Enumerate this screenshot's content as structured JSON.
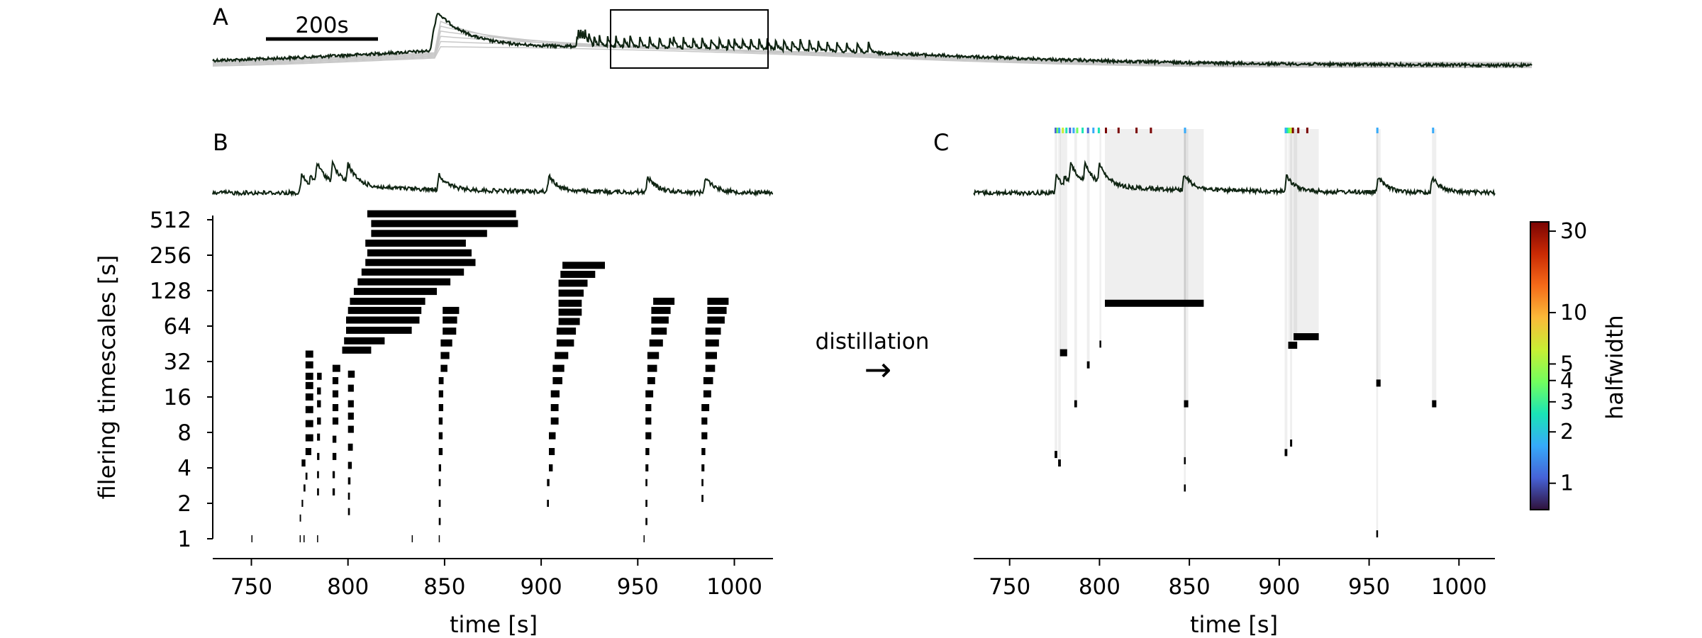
{
  "panel_a": {
    "letter": "A",
    "scalebar_label": "200s",
    "peak_times": [
      776,
      778,
      781,
      784,
      787,
      792,
      799,
      806,
      817,
      828,
      839,
      847,
      860,
      873,
      886,
      900,
      905,
      918,
      931,
      943,
      955,
      966,
      978,
      986,
      997,
      1008,
      1019,
      1030,
      1041,
      1052,
      1063,
      1074,
      1086,
      1098,
      1110,
      1123,
      1136,
      1150,
      1165
    ]
  },
  "panel_b": {
    "letter": "B"
  },
  "panel_c": {
    "letter": "C"
  },
  "arrow": {
    "label": "distillation",
    "glyph": "→"
  },
  "colorbar": {
    "label": "halfwidth",
    "tick_labels": [
      "1",
      "2",
      "3",
      "4",
      "5",
      "10",
      "30"
    ],
    "tick_values": [
      1,
      2,
      3,
      4,
      5,
      10,
      30
    ],
    "colors": [
      "#30123b",
      "#4662d7",
      "#36aaf9",
      "#1ae4b6",
      "#72fe5e",
      "#c8ef34",
      "#faba39",
      "#f66b19",
      "#ca2a04",
      "#7a0403"
    ]
  },
  "chart_data": [
    {
      "panel": "B",
      "type": "bar",
      "orientation": "horizontal-segments",
      "xlabel": "time [s]",
      "ylabel": "filering timescales [s]",
      "xlim": [
        730,
        1020
      ],
      "x_ticks": [
        750,
        800,
        850,
        900,
        950,
        1000
      ],
      "y_scale": "log2",
      "y_ticks": [
        1,
        2,
        4,
        8,
        16,
        32,
        64,
        128,
        256,
        512
      ],
      "peak_times": [
        776,
        784,
        792,
        800,
        847,
        904,
        955,
        985
      ],
      "segments": [
        [
          750,
          1,
          0.5
        ],
        [
          775,
          1,
          0.5
        ],
        [
          777,
          1,
          0.5
        ],
        [
          784,
          1,
          0.5
        ],
        [
          833,
          1,
          0.5
        ],
        [
          847,
          1,
          0.5
        ],
        [
          953,
          1,
          0.5
        ],
        [
          775,
          1.5,
          0.7
        ],
        [
          776,
          2,
          0.8
        ],
        [
          777,
          2.7,
          1
        ],
        [
          778,
          3.4,
          1
        ],
        [
          776,
          4.4,
          2
        ],
        [
          778,
          5.5,
          3
        ],
        [
          778,
          7.2,
          4
        ],
        [
          778,
          9.5,
          4
        ],
        [
          778,
          12.5,
          4
        ],
        [
          778,
          16,
          4
        ],
        [
          778,
          20,
          4
        ],
        [
          778,
          24,
          4
        ],
        [
          778,
          30,
          4
        ],
        [
          778,
          37,
          4
        ],
        [
          784,
          2.5,
          1
        ],
        [
          784,
          3.5,
          1
        ],
        [
          784,
          5,
          1.2
        ],
        [
          784,
          7.3,
          1.5
        ],
        [
          784,
          10,
          2
        ],
        [
          784,
          14,
          2
        ],
        [
          784,
          18,
          2
        ],
        [
          784,
          24,
          2.4
        ],
        [
          792,
          2.5,
          1.2
        ],
        [
          792,
          3.5,
          1.2
        ],
        [
          792,
          5,
          2
        ],
        [
          792,
          7,
          2
        ],
        [
          792,
          10,
          3
        ],
        [
          792,
          13,
          3
        ],
        [
          792,
          17,
          3
        ],
        [
          792,
          22,
          3
        ],
        [
          792,
          28,
          4
        ],
        [
          800,
          1.7,
          1
        ],
        [
          800,
          2.3,
          1
        ],
        [
          800,
          3.1,
          1.3
        ],
        [
          800,
          4.2,
          2
        ],
        [
          800,
          6,
          2.5
        ],
        [
          800,
          8.5,
          3
        ],
        [
          800,
          11,
          3
        ],
        [
          800,
          14,
          3
        ],
        [
          800,
          19,
          3
        ],
        [
          800,
          25,
          3.5
        ],
        [
          847,
          1.4,
          1
        ],
        [
          847,
          2,
          1
        ],
        [
          847,
          3,
          1
        ],
        [
          847,
          4,
          1.2
        ],
        [
          847,
          5.5,
          2
        ],
        [
          847,
          7.5,
          2
        ],
        [
          847,
          10,
          2
        ],
        [
          847,
          13,
          2.3
        ],
        [
          847,
          17,
          2.3
        ],
        [
          847,
          22,
          2.5
        ],
        [
          848,
          28,
          3.5
        ],
        [
          848,
          36,
          4.5
        ],
        [
          848,
          46,
          6
        ],
        [
          849,
          58,
          7
        ],
        [
          849,
          72,
          7.5
        ],
        [
          849,
          87,
          8.5
        ],
        [
          903,
          2,
          1
        ],
        [
          903,
          3,
          1.3
        ],
        [
          904,
          4,
          2
        ],
        [
          904,
          5.5,
          3
        ],
        [
          904,
          7.5,
          3.5
        ],
        [
          905,
          10,
          4
        ],
        [
          905,
          13,
          4
        ],
        [
          905,
          17,
          4.5
        ],
        [
          906,
          22,
          5
        ],
        [
          906,
          28,
          6
        ],
        [
          907,
          36,
          7
        ],
        [
          908,
          46,
          9
        ],
        [
          908,
          58,
          10
        ],
        [
          909,
          70,
          11
        ],
        [
          909,
          84,
          12
        ],
        [
          909,
          100,
          12
        ],
        [
          909,
          122,
          13
        ],
        [
          909,
          148,
          15
        ],
        [
          910,
          176,
          18
        ],
        [
          911,
          210,
          22
        ],
        [
          954,
          1.4,
          1
        ],
        [
          954,
          2,
          1
        ],
        [
          954,
          3,
          1
        ],
        [
          954,
          4,
          1.5
        ],
        [
          954,
          5.5,
          2
        ],
        [
          954,
          7.5,
          3
        ],
        [
          954,
          10,
          3
        ],
        [
          954,
          13,
          3
        ],
        [
          954,
          17,
          4
        ],
        [
          955,
          22,
          4
        ],
        [
          955,
          28,
          5
        ],
        [
          955,
          36,
          6
        ],
        [
          956,
          46,
          7
        ],
        [
          957,
          58,
          8
        ],
        [
          957,
          72,
          9
        ],
        [
          957,
          87,
          10
        ],
        [
          958,
          104,
          11
        ],
        [
          983,
          2.2,
          1
        ],
        [
          983,
          3,
          1
        ],
        [
          983,
          4,
          1.5
        ],
        [
          983,
          5.5,
          2
        ],
        [
          983,
          7.5,
          3
        ],
        [
          983,
          10,
          3
        ],
        [
          983,
          13,
          4
        ],
        [
          984,
          17,
          4
        ],
        [
          984,
          22,
          5
        ],
        [
          985,
          28,
          5
        ],
        [
          985,
          36,
          6
        ],
        [
          985,
          46,
          7
        ],
        [
          985,
          58,
          8
        ],
        [
          986,
          72,
          9
        ],
        [
          986,
          87,
          10
        ],
        [
          986,
          104,
          11
        ],
        [
          797,
          40,
          15
        ],
        [
          798,
          48,
          21
        ],
        [
          799,
          59,
          34
        ],
        [
          799,
          72,
          38
        ],
        [
          800,
          87,
          38
        ],
        [
          801,
          104,
          39
        ],
        [
          803,
          126,
          43
        ],
        [
          805,
          152,
          48
        ],
        [
          807,
          184,
          53
        ],
        [
          809,
          222,
          57
        ],
        [
          810,
          268,
          54
        ],
        [
          809,
          324,
          52
        ],
        [
          812,
          392,
          60
        ],
        [
          812,
          475,
          76
        ],
        [
          810,
          575,
          77
        ]
      ]
    },
    {
      "panel": "C",
      "type": "bar",
      "orientation": "horizontal-segments",
      "xlabel": "time [s]",
      "xlim": [
        730,
        1020
      ],
      "x_ticks": [
        750,
        800,
        850,
        900,
        950,
        1000
      ],
      "y_scale": "log2",
      "color_scale": "halfwidth",
      "segments": [
        [
          775,
          5.2,
          1.5,
          3,
          55
        ],
        [
          777,
          4.4,
          1.5,
          4,
          55
        ],
        [
          778,
          38,
          4,
          5,
          30
        ],
        [
          786,
          14,
          1.5,
          3,
          20
        ],
        [
          793,
          30,
          1.5,
          4,
          20
        ],
        [
          800,
          45,
          1,
          4,
          20
        ],
        [
          803,
          100,
          55,
          30,
          30
        ],
        [
          847,
          2.7,
          1,
          3,
          30
        ],
        [
          847,
          4.6,
          1,
          3,
          30
        ],
        [
          847,
          14,
          2.4,
          3,
          30
        ],
        [
          903,
          5.4,
          1.5,
          4,
          30
        ],
        [
          906,
          6.5,
          1.2,
          4,
          30
        ],
        [
          905,
          44,
          5,
          5,
          30
        ],
        [
          908,
          52,
          14,
          10,
          30
        ],
        [
          954,
          1.1,
          1,
          2,
          30
        ],
        [
          954,
          21,
          2.4,
          2,
          30
        ],
        [
          985,
          14,
          2.4,
          2,
          30
        ]
      ],
      "marks": [
        [
          775,
          1
        ],
        [
          776,
          4
        ],
        [
          777,
          2
        ],
        [
          779,
          5
        ],
        [
          781,
          3
        ],
        [
          783,
          1
        ],
        [
          785,
          2
        ],
        [
          787,
          4
        ],
        [
          790,
          3
        ],
        [
          793,
          1
        ],
        [
          796,
          2
        ],
        [
          799,
          3
        ],
        [
          803,
          30
        ],
        [
          810,
          30
        ],
        [
          820,
          30
        ],
        [
          828,
          30
        ],
        [
          847,
          2
        ],
        [
          903,
          2
        ],
        [
          904,
          3
        ],
        [
          905,
          4
        ],
        [
          906,
          5
        ],
        [
          907,
          30
        ],
        [
          910,
          30
        ],
        [
          915,
          30
        ],
        [
          954,
          2
        ],
        [
          985,
          2
        ]
      ]
    }
  ]
}
